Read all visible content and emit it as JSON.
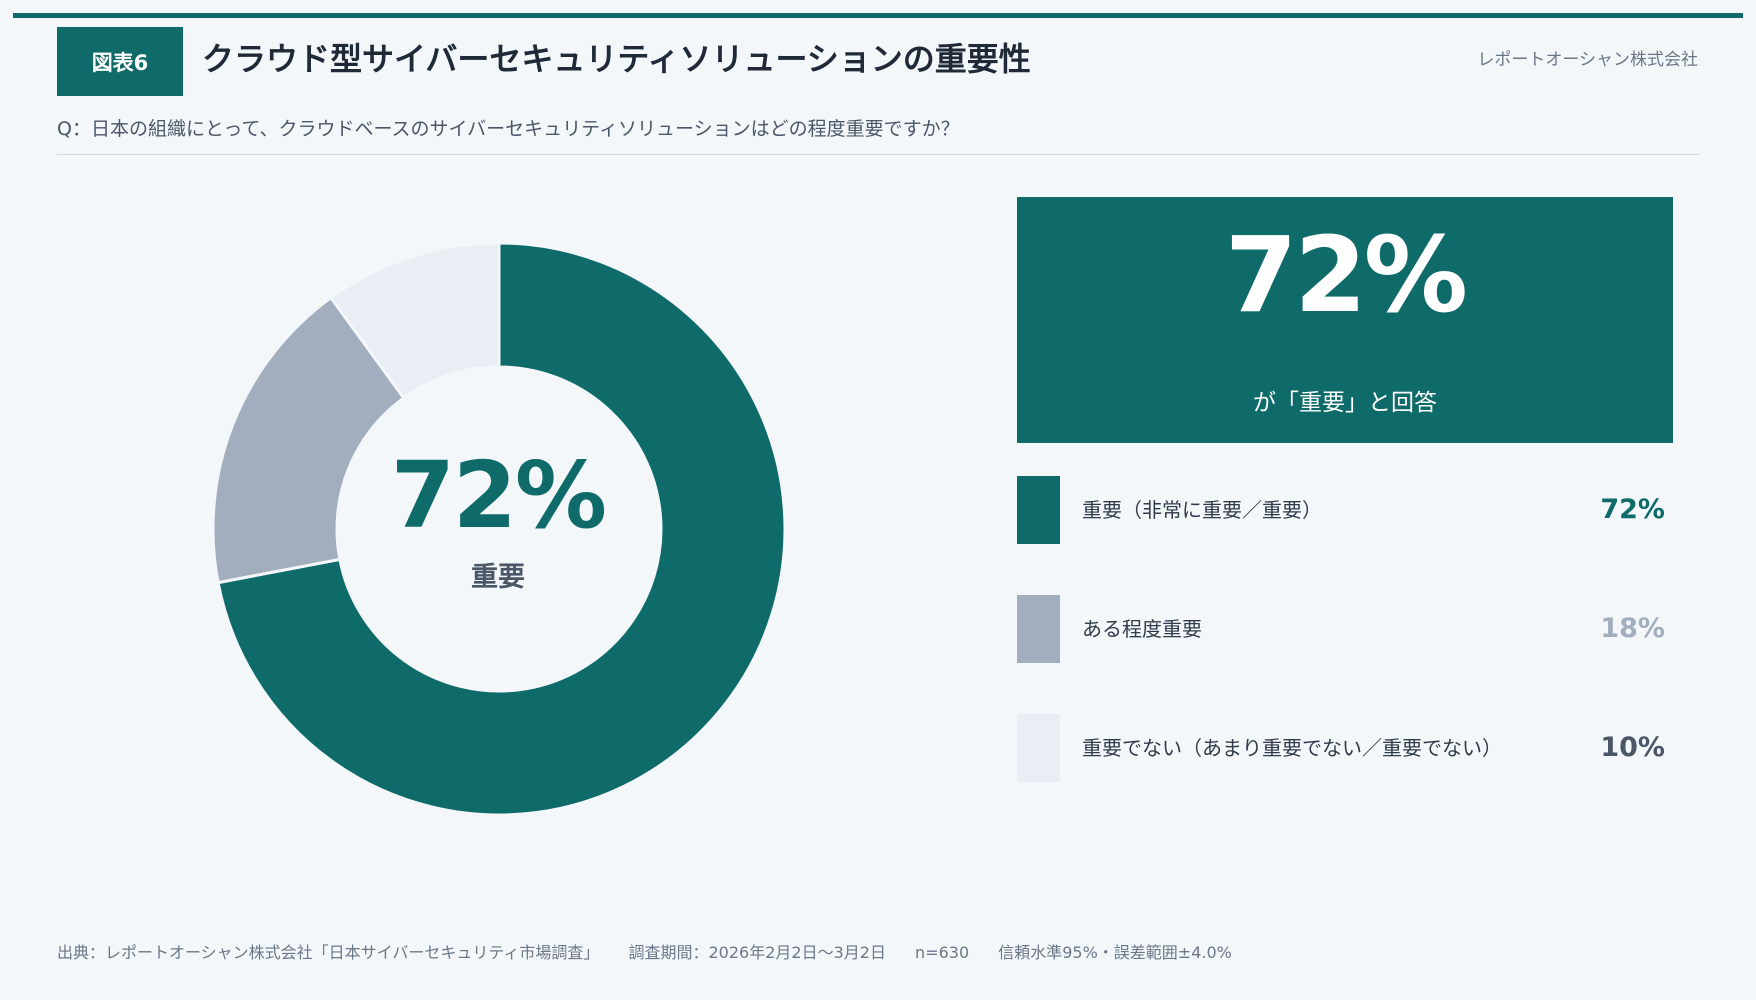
{
  "header": {
    "figure_badge": "図表6",
    "title": "クラウド型サイバーセキュリティソリューションの重要性",
    "company": "レポートオーシャン株式会社",
    "question": "Q：日本の組織にとって、クラウドベースのサイバーセキュリティソリューションはどの程度重要ですか？"
  },
  "donut_center": {
    "value": "72%",
    "label": "重要"
  },
  "kpi": {
    "value": "72%",
    "caption": "が「重要」と回答"
  },
  "legend": [
    {
      "label": "重要（非常に重要／重要）",
      "value": "72%",
      "color": "#0e6b69",
      "value_color": "#0e6b69"
    },
    {
      "label": "ある程度重要",
      "value": "18%",
      "color": "#a2aebd",
      "value_color": "#a2aebd"
    },
    {
      "label": "重要でない（あまり重要でない／重要でない）",
      "value": "10%",
      "color": "#e9eef4",
      "value_color": "#4b5668"
    }
  ],
  "footer": {
    "source": "出典：レポートオーシャン株式会社「日本サイバーセキュリティ市場調査」",
    "period": "調査期間：2026年2月2日〜3月2日",
    "sample": "n=630",
    "confidence": "信頼水準95%・誤差範囲±4.0%"
  },
  "colors": {
    "accent": "#0e6b69",
    "secondary": "#a2aebd",
    "light": "#e9eef4",
    "background": "#f3f7fa"
  },
  "chart_data": {
    "type": "pie",
    "categories": [
      "重要（非常に重要／重要）",
      "ある程度重要",
      "重要でない（あまり重要でない／重要でない）"
    ],
    "values": [
      72,
      18,
      10
    ],
    "colors": [
      "#0e6b69",
      "#a2aebd",
      "#e9eef4"
    ],
    "unit": "%",
    "donut": true,
    "legend": "right"
  }
}
